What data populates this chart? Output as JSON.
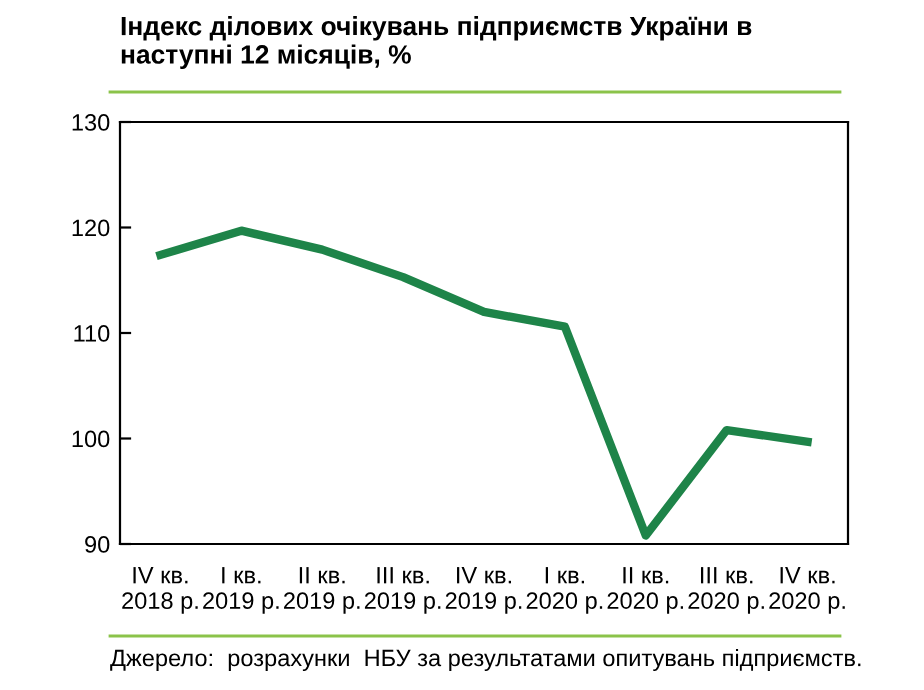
{
  "chart_data": {
    "type": "line",
    "title": "Індекс ділових очікувань підприємств України в\nнаступні 12 місяців, %",
    "categories": [
      "IV кв.\n2018 р.",
      "I кв.\n2019 р.",
      "II кв.\n2019 р.",
      "III кв.\n2019 р.",
      "IV кв.\n2019 р.",
      "I кв.\n2020 р.",
      "II кв.\n2020 р.",
      "III кв.\n2020 р.",
      "IV кв.\n2020 р."
    ],
    "series": [
      {
        "color": "#1e8449",
        "values": [
          117.4,
          119.7,
          117.9,
          115.3,
          112.0,
          110.6,
          90.8,
          100.8,
          99.7
        ]
      }
    ],
    "ylim": [
      90,
      130
    ],
    "yticks": [
      90,
      100,
      110,
      120,
      130
    ],
    "grid": false,
    "marker": "none",
    "line_style": "solid",
    "annotations": [
      "Джерело:  розрахунки  НБУ за результатами опитувань підприємств."
    ]
  }
}
